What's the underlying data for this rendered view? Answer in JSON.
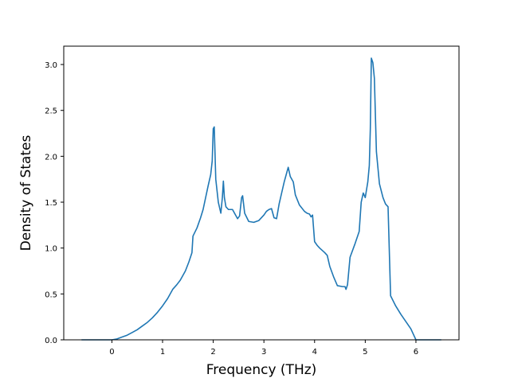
{
  "chart_data": {
    "type": "line",
    "title": "",
    "xlabel": "Frequency (THz)",
    "ylabel": "Density of States",
    "xlim": [
      -0.95,
      6.85
    ],
    "ylim": [
      0.0,
      3.2
    ],
    "x_ticks": [
      0,
      1,
      2,
      3,
      4,
      5,
      6
    ],
    "x_tick_labels": [
      "0",
      "1",
      "2",
      "3",
      "4",
      "5",
      "6"
    ],
    "y_ticks": [
      0.0,
      0.5,
      1.0,
      1.5,
      2.0,
      2.5,
      3.0
    ],
    "y_tick_labels": [
      "0.0",
      "0.5",
      "1.0",
      "1.5",
      "2.0",
      "2.5",
      "3.0"
    ],
    "grid": false,
    "line_color": "#1f77b4",
    "series": [
      {
        "x": [
          -0.6,
          -0.3,
          0.0,
          0.1,
          0.2,
          0.3,
          0.4,
          0.5,
          0.6,
          0.7,
          0.8,
          0.9,
          1.0,
          1.1,
          1.2,
          1.28,
          1.35,
          1.45,
          1.52,
          1.58,
          1.6,
          1.68,
          1.75,
          1.8,
          1.85,
          1.9,
          1.95,
          1.98,
          2.0,
          2.02,
          2.05,
          2.1,
          2.15,
          2.18,
          2.2,
          2.22,
          2.25,
          2.3,
          2.38,
          2.42,
          2.48,
          2.52,
          2.56,
          2.58,
          2.62,
          2.7,
          2.8,
          2.9,
          3.0,
          3.05,
          3.1,
          3.15,
          3.2,
          3.25,
          3.3,
          3.35,
          3.4,
          3.45,
          3.48,
          3.52,
          3.58,
          3.62,
          3.7,
          3.8,
          3.85,
          3.9,
          3.93,
          3.96,
          4.0,
          4.05,
          4.1,
          4.2,
          4.25,
          4.3,
          4.38,
          4.45,
          4.55,
          4.6,
          4.62,
          4.65,
          4.7,
          4.8,
          4.88,
          4.92,
          4.96,
          5.0,
          5.05,
          5.08,
          5.1,
          5.12,
          5.15,
          5.18,
          5.22,
          5.28,
          5.35,
          5.4,
          5.45,
          5.5,
          5.6,
          5.7,
          5.8,
          5.9,
          6.0,
          6.2,
          6.5
        ],
        "y": [
          0.0,
          0.0,
          0.0,
          0.01,
          0.03,
          0.05,
          0.08,
          0.11,
          0.15,
          0.19,
          0.24,
          0.3,
          0.37,
          0.45,
          0.55,
          0.6,
          0.65,
          0.75,
          0.85,
          0.95,
          1.13,
          1.22,
          1.33,
          1.42,
          1.55,
          1.68,
          1.8,
          1.95,
          2.3,
          2.32,
          1.75,
          1.5,
          1.38,
          1.55,
          1.73,
          1.55,
          1.45,
          1.42,
          1.42,
          1.38,
          1.32,
          1.35,
          1.55,
          1.57,
          1.38,
          1.29,
          1.28,
          1.3,
          1.36,
          1.4,
          1.42,
          1.43,
          1.33,
          1.32,
          1.48,
          1.6,
          1.72,
          1.82,
          1.88,
          1.78,
          1.72,
          1.58,
          1.47,
          1.4,
          1.38,
          1.37,
          1.34,
          1.36,
          1.07,
          1.03,
          1.0,
          0.95,
          0.92,
          0.8,
          0.68,
          0.59,
          0.58,
          0.58,
          0.55,
          0.6,
          0.9,
          1.05,
          1.18,
          1.5,
          1.6,
          1.55,
          1.72,
          1.9,
          2.3,
          3.07,
          3.02,
          2.85,
          2.05,
          1.7,
          1.55,
          1.48,
          1.45,
          0.48,
          0.37,
          0.28,
          0.2,
          0.12,
          0.0,
          0.0,
          0.0
        ]
      }
    ]
  }
}
